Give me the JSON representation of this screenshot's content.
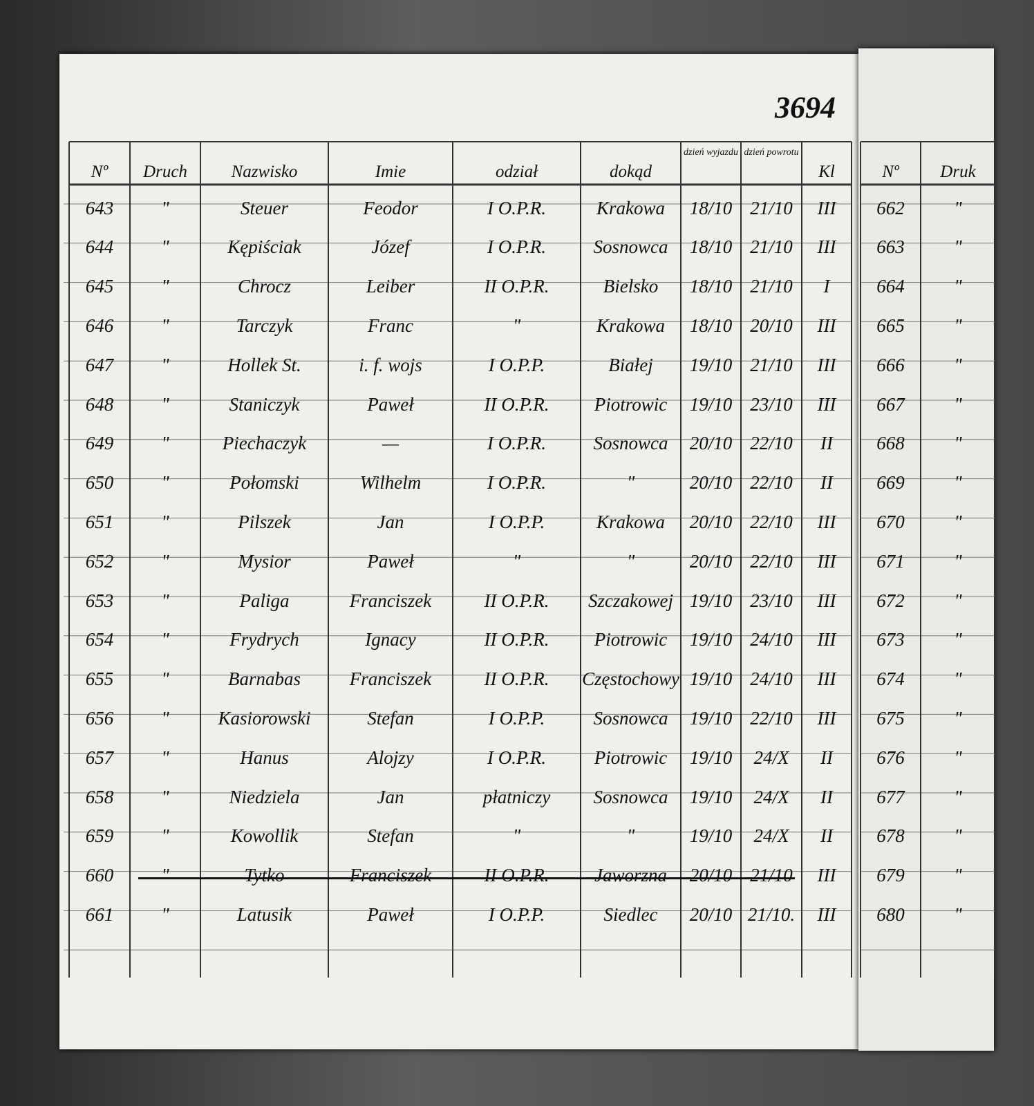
{
  "page_number": "3694",
  "left_page": {
    "headers": [
      "Nº",
      "Druch",
      "Nazwisko",
      "Imie",
      "odział",
      "dokąd",
      "dzień wyjazdu",
      "dzień powrotu",
      "Kl"
    ],
    "rows": [
      {
        "cells": [
          "643",
          "\"",
          "Steuer",
          "Feodor",
          "I O.P.R.",
          "Krakowa",
          "18/10",
          "21/10",
          "III"
        ]
      },
      {
        "cells": [
          "644",
          "\"",
          "Kępiściak",
          "Józef",
          "I O.P.R.",
          "Sosnowca",
          "18/10",
          "21/10",
          "III"
        ]
      },
      {
        "cells": [
          "645",
          "\"",
          "Chrocz",
          "Leiber",
          "II O.P.R.",
          "Bielsko",
          "18/10",
          "21/10",
          "I"
        ]
      },
      {
        "cells": [
          "646",
          "\"",
          "Tarczyk",
          "Franc",
          "\"",
          "Krakowa",
          "18/10",
          "20/10",
          "III"
        ]
      },
      {
        "cells": [
          "647",
          "\"",
          "Hollek St.",
          "i. f. wojs",
          "I O.P.P.",
          "Białej",
          "19/10",
          "21/10",
          "III"
        ]
      },
      {
        "cells": [
          "648",
          "\"",
          "Staniczyk",
          "Paweł",
          "II O.P.R.",
          "Piotrowic",
          "19/10",
          "23/10",
          "III"
        ]
      },
      {
        "cells": [
          "649",
          "\"",
          "Piechaczyk",
          "—",
          "I O.P.R.",
          "Sosnowca",
          "20/10",
          "22/10",
          "II"
        ]
      },
      {
        "cells": [
          "650",
          "\"",
          "Połomski",
          "Wilhelm",
          "I O.P.R.",
          "\"",
          "20/10",
          "22/10",
          "II"
        ]
      },
      {
        "cells": [
          "651",
          "\"",
          "Pilszek",
          "Jan",
          "I O.P.P.",
          "Krakowa",
          "20/10",
          "22/10",
          "III"
        ]
      },
      {
        "cells": [
          "652",
          "\"",
          "Mysior",
          "Paweł",
          "\"",
          "\"",
          "20/10",
          "22/10",
          "III"
        ]
      },
      {
        "cells": [
          "653",
          "\"",
          "Paliga",
          "Franciszek",
          "II O.P.R.",
          "Szczakowej",
          "19/10",
          "23/10",
          "III"
        ]
      },
      {
        "cells": [
          "654",
          "\"",
          "Frydrych",
          "Ignacy",
          "II O.P.R.",
          "Piotrowic",
          "19/10",
          "24/10",
          "III"
        ]
      },
      {
        "cells": [
          "655",
          "\"",
          "Barnabas",
          "Franciszek",
          "II O.P.R.",
          "Częstochowy",
          "19/10",
          "24/10",
          "III"
        ]
      },
      {
        "cells": [
          "656",
          "\"",
          "Kasiorowski",
          "Stefan",
          "I O.P.P.",
          "Sosnowca",
          "19/10",
          "22/10",
          "III"
        ]
      },
      {
        "cells": [
          "657",
          "\"",
          "Hanus",
          "Alojzy",
          "I O.P.R.",
          "Piotrowic",
          "19/10",
          "24/X",
          "II"
        ]
      },
      {
        "cells": [
          "658",
          "\"",
          "Niedziela",
          "Jan",
          "płatniczy",
          "Sosnowca",
          "19/10",
          "24/X",
          "II"
        ]
      },
      {
        "cells": [
          "659",
          "\"",
          "Kowollik",
          "Stefan",
          "\"",
          "\"",
          "19/10",
          "24/X",
          "II"
        ]
      },
      {
        "cells": [
          "660",
          "\"",
          "Tytko",
          "Franciszek",
          "II O.P.R.",
          "Jaworzna",
          "20/10",
          "21/10",
          "III"
        ],
        "struck": true
      },
      {
        "cells": [
          "661",
          "\"",
          "Latusik",
          "Paweł",
          "I O.P.P.",
          "Siedlec",
          "20/10",
          "21/10.",
          "III"
        ]
      }
    ]
  },
  "right_page": {
    "headers": [
      "Nº",
      "Druk"
    ],
    "rows": [
      [
        "662",
        "\""
      ],
      [
        "663",
        "\""
      ],
      [
        "664",
        "\""
      ],
      [
        "665",
        "\""
      ],
      [
        "666",
        "\""
      ],
      [
        "667",
        "\""
      ],
      [
        "668",
        "\""
      ],
      [
        "669",
        "\""
      ],
      [
        "670",
        "\""
      ],
      [
        "671",
        "\""
      ],
      [
        "672",
        "\""
      ],
      [
        "673",
        "\""
      ],
      [
        "674",
        "\""
      ],
      [
        "675",
        "\""
      ],
      [
        "676",
        "\""
      ],
      [
        "677",
        "\""
      ],
      [
        "678",
        "\""
      ],
      [
        "679",
        "\""
      ],
      [
        "680",
        "\""
      ]
    ]
  }
}
